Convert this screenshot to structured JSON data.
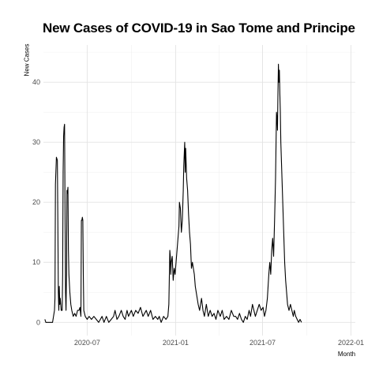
{
  "chart_data": {
    "type": "line",
    "title": "New Cases of COVID-19 in Sao Tome and Principe",
    "xlabel": "Month",
    "ylabel": "New Cases",
    "x_ticks": [
      "2020-07",
      "2021-01",
      "2021-07",
      "2022-01"
    ],
    "y_ticks": [
      0,
      10,
      20,
      30,
      40
    ],
    "xlim": [
      "2020-04-01",
      "2022-01-10"
    ],
    "ylim": [
      0,
      44
    ],
    "grid": true,
    "legend": "none",
    "series": [
      {
        "name": "New Cases",
        "color": "#000000",
        "points": [
          [
            "2020-04-04",
            0.5
          ],
          [
            "2020-04-06",
            0
          ],
          [
            "2020-04-20",
            0
          ],
          [
            "2020-04-22",
            1
          ],
          [
            "2020-04-24",
            2
          ],
          [
            "2020-04-25",
            4
          ],
          [
            "2020-04-26",
            23
          ],
          [
            "2020-04-28",
            27.5
          ],
          [
            "2020-04-30",
            27
          ],
          [
            "2020-05-01",
            17
          ],
          [
            "2020-05-02",
            5
          ],
          [
            "2020-05-03",
            2
          ],
          [
            "2020-05-04",
            6
          ],
          [
            "2020-05-05",
            3
          ],
          [
            "2020-05-06",
            4
          ],
          [
            "2020-05-08",
            2
          ],
          [
            "2020-05-10",
            2
          ],
          [
            "2020-05-11",
            8
          ],
          [
            "2020-05-12",
            25
          ],
          [
            "2020-05-13",
            31
          ],
          [
            "2020-05-14",
            32.5
          ],
          [
            "2020-05-15",
            33
          ],
          [
            "2020-05-16",
            18
          ],
          [
            "2020-05-17",
            5
          ],
          [
            "2020-05-18",
            2
          ],
          [
            "2020-05-19",
            8
          ],
          [
            "2020-05-20",
            22
          ],
          [
            "2020-05-21",
            21.5
          ],
          [
            "2020-05-22",
            22.5
          ],
          [
            "2020-05-23",
            12
          ],
          [
            "2020-05-24",
            8
          ],
          [
            "2020-05-26",
            5
          ],
          [
            "2020-05-28",
            3
          ],
          [
            "2020-05-30",
            2
          ],
          [
            "2020-06-02",
            1
          ],
          [
            "2020-06-05",
            1.5
          ],
          [
            "2020-06-08",
            1
          ],
          [
            "2020-06-11",
            2
          ],
          [
            "2020-06-14",
            2
          ],
          [
            "2020-06-16",
            2.5
          ],
          [
            "2020-06-18",
            1
          ],
          [
            "2020-06-19",
            17
          ],
          [
            "2020-06-20",
            17
          ],
          [
            "2020-06-21",
            17.5
          ],
          [
            "2020-06-22",
            17
          ],
          [
            "2020-06-23",
            8
          ],
          [
            "2020-06-24",
            2
          ],
          [
            "2020-06-27",
            1
          ],
          [
            "2020-07-01",
            0.5
          ],
          [
            "2020-07-05",
            1
          ],
          [
            "2020-07-10",
            0.5
          ],
          [
            "2020-07-15",
            1
          ],
          [
            "2020-07-20",
            0.5
          ],
          [
            "2020-07-25",
            0
          ],
          [
            "2020-08-01",
            1
          ],
          [
            "2020-08-05",
            0
          ],
          [
            "2020-08-10",
            1
          ],
          [
            "2020-08-15",
            0
          ],
          [
            "2020-08-20",
            0.5
          ],
          [
            "2020-08-25",
            1
          ],
          [
            "2020-08-28",
            2
          ],
          [
            "2020-09-01",
            0.5
          ],
          [
            "2020-09-05",
            1
          ],
          [
            "2020-09-10",
            2
          ],
          [
            "2020-09-14",
            1
          ],
          [
            "2020-09-18",
            0.5
          ],
          [
            "2020-09-22",
            2
          ],
          [
            "2020-09-25",
            1
          ],
          [
            "2020-10-01",
            2
          ],
          [
            "2020-10-05",
            1
          ],
          [
            "2020-10-10",
            2
          ],
          [
            "2020-10-15",
            1.5
          ],
          [
            "2020-10-20",
            2.5
          ],
          [
            "2020-10-25",
            1
          ],
          [
            "2020-11-01",
            2
          ],
          [
            "2020-11-05",
            1
          ],
          [
            "2020-11-10",
            2
          ],
          [
            "2020-11-15",
            0.5
          ],
          [
            "2020-11-20",
            1
          ],
          [
            "2020-11-25",
            0.5
          ],
          [
            "2020-11-28",
            1
          ],
          [
            "2020-12-02",
            0
          ],
          [
            "2020-12-07",
            1
          ],
          [
            "2020-12-12",
            0.5
          ],
          [
            "2020-12-16",
            1
          ],
          [
            "2020-12-18",
            3
          ],
          [
            "2020-12-20",
            12
          ],
          [
            "2020-12-21",
            11
          ],
          [
            "2020-12-22",
            8
          ],
          [
            "2020-12-23",
            10
          ],
          [
            "2020-12-25",
            11
          ],
          [
            "2020-12-27",
            7
          ],
          [
            "2020-12-29",
            9
          ],
          [
            "2020-12-31",
            8
          ],
          [
            "2021-01-02",
            10
          ],
          [
            "2021-01-04",
            12
          ],
          [
            "2021-01-06",
            14
          ],
          [
            "2021-01-08",
            16
          ],
          [
            "2021-01-09",
            20
          ],
          [
            "2021-01-11",
            19
          ],
          [
            "2021-01-13",
            15
          ],
          [
            "2021-01-15",
            17
          ],
          [
            "2021-01-17",
            22
          ],
          [
            "2021-01-18",
            26
          ],
          [
            "2021-01-19",
            28
          ],
          [
            "2021-01-20",
            30
          ],
          [
            "2021-01-21",
            25
          ],
          [
            "2021-01-22",
            29
          ],
          [
            "2021-01-24",
            24
          ],
          [
            "2021-01-26",
            22
          ],
          [
            "2021-01-28",
            18
          ],
          [
            "2021-01-30",
            15
          ],
          [
            "2021-02-01",
            13
          ],
          [
            "2021-02-03",
            9
          ],
          [
            "2021-02-05",
            10
          ],
          [
            "2021-02-07",
            9
          ],
          [
            "2021-02-09",
            8
          ],
          [
            "2021-02-11",
            6
          ],
          [
            "2021-02-13",
            5
          ],
          [
            "2021-02-15",
            4
          ],
          [
            "2021-02-17",
            3
          ],
          [
            "2021-02-20",
            2
          ],
          [
            "2021-02-24",
            4
          ],
          [
            "2021-02-27",
            2
          ],
          [
            "2021-03-02",
            1
          ],
          [
            "2021-03-06",
            3
          ],
          [
            "2021-03-10",
            1
          ],
          [
            "2021-03-14",
            2
          ],
          [
            "2021-03-18",
            1
          ],
          [
            "2021-03-22",
            1.5
          ],
          [
            "2021-03-26",
            0.5
          ],
          [
            "2021-03-30",
            2
          ],
          [
            "2021-04-04",
            1
          ],
          [
            "2021-04-08",
            2
          ],
          [
            "2021-04-12",
            0.5
          ],
          [
            "2021-04-17",
            1
          ],
          [
            "2021-04-22",
            0.5
          ],
          [
            "2021-04-27",
            2
          ],
          [
            "2021-05-02",
            1
          ],
          [
            "2021-05-06",
            1
          ],
          [
            "2021-05-10",
            0.5
          ],
          [
            "2021-05-14",
            1.5
          ],
          [
            "2021-05-18",
            0.5
          ],
          [
            "2021-05-22",
            0
          ],
          [
            "2021-05-26",
            1
          ],
          [
            "2021-05-30",
            0.5
          ],
          [
            "2021-06-03",
            2
          ],
          [
            "2021-06-06",
            1
          ],
          [
            "2021-06-10",
            3
          ],
          [
            "2021-06-13",
            2
          ],
          [
            "2021-06-16",
            1
          ],
          [
            "2021-06-20",
            2
          ],
          [
            "2021-06-24",
            3
          ],
          [
            "2021-06-28",
            2
          ],
          [
            "2021-07-02",
            2.5
          ],
          [
            "2021-07-05",
            1
          ],
          [
            "2021-07-08",
            2
          ],
          [
            "2021-07-11",
            4
          ],
          [
            "2021-07-14",
            8
          ],
          [
            "2021-07-16",
            10
          ],
          [
            "2021-07-18",
            8
          ],
          [
            "2021-07-20",
            12
          ],
          [
            "2021-07-22",
            14
          ],
          [
            "2021-07-24",
            11
          ],
          [
            "2021-07-26",
            17
          ],
          [
            "2021-07-28",
            24
          ],
          [
            "2021-07-30",
            35
          ],
          [
            "2021-07-31",
            34
          ],
          [
            "2021-08-01",
            32
          ],
          [
            "2021-08-02",
            38
          ],
          [
            "2021-08-03",
            43
          ],
          [
            "2021-08-04",
            40
          ],
          [
            "2021-08-05",
            42
          ],
          [
            "2021-08-06",
            38
          ],
          [
            "2021-08-07",
            35
          ],
          [
            "2021-08-08",
            30
          ],
          [
            "2021-08-10",
            25
          ],
          [
            "2021-08-12",
            20
          ],
          [
            "2021-08-14",
            15
          ],
          [
            "2021-08-16",
            10
          ],
          [
            "2021-08-18",
            7
          ],
          [
            "2021-08-20",
            5
          ],
          [
            "2021-08-22",
            3
          ],
          [
            "2021-08-25",
            2
          ],
          [
            "2021-08-28",
            3
          ],
          [
            "2021-08-31",
            2
          ],
          [
            "2021-09-03",
            1
          ],
          [
            "2021-09-05",
            2
          ],
          [
            "2021-09-08",
            1
          ],
          [
            "2021-09-11",
            0.5
          ],
          [
            "2021-09-14",
            0
          ],
          [
            "2021-09-17",
            0.5
          ],
          [
            "2021-09-20",
            0
          ]
        ]
      }
    ]
  }
}
